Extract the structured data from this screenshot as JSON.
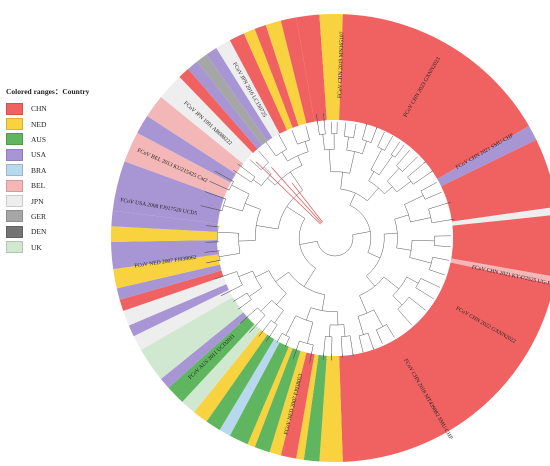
{
  "legend": {
    "title": "Colored ranges：Country",
    "items": [
      {
        "label": "CHN",
        "color": "#f06262"
      },
      {
        "label": "NED",
        "color": "#f8d23f"
      },
      {
        "label": "AUS",
        "color": "#5fb65f"
      },
      {
        "label": "USA",
        "color": "#a896d4"
      },
      {
        "label": "BRA",
        "color": "#b8d8ee"
      },
      {
        "label": "BEL",
        "color": "#f4b7b7"
      },
      {
        "label": "JPN",
        "color": "#eeeeee"
      },
      {
        "label": "GER",
        "color": "#a6a6a6"
      },
      {
        "label": "DEN",
        "color": "#747474"
      },
      {
        "label": "UK",
        "color": "#cfe8cf"
      }
    ]
  },
  "sectors": [
    {
      "a0": -100,
      "a1": -94,
      "country": "CHN"
    },
    {
      "a0": -94,
      "a1": -88,
      "country": "NED"
    },
    {
      "a0": -88,
      "a1": -30,
      "country": "CHN"
    },
    {
      "a0": -30,
      "a1": -26,
      "country": "USA"
    },
    {
      "a0": -26,
      "a1": -8,
      "country": "CHN"
    },
    {
      "a0": -8,
      "a1": -6,
      "country": "JPN"
    },
    {
      "a0": -6,
      "a1": 10,
      "country": "CHN"
    },
    {
      "a0": 10,
      "a1": 12,
      "country": "BEL"
    },
    {
      "a0": 12,
      "a1": 88,
      "country": "CHN"
    },
    {
      "a0": 88,
      "a1": 94,
      "country": "NED"
    },
    {
      "a0": 94,
      "a1": 98,
      "country": "AUS"
    },
    {
      "a0": 98,
      "a1": 100,
      "country": "NED"
    },
    {
      "a0": 100,
      "a1": 104,
      "country": "CHN"
    },
    {
      "a0": 104,
      "a1": 107,
      "country": "NED"
    },
    {
      "a0": 107,
      "a1": 111,
      "country": "AUS"
    },
    {
      "a0": 111,
      "a1": 113,
      "country": "NED"
    },
    {
      "a0": 113,
      "a1": 118,
      "country": "AUS"
    },
    {
      "a0": 118,
      "a1": 121,
      "country": "BRA"
    },
    {
      "a0": 121,
      "a1": 125,
      "country": "AUS"
    },
    {
      "a0": 125,
      "a1": 129,
      "country": "NED"
    },
    {
      "a0": 129,
      "a1": 133,
      "country": "UK"
    },
    {
      "a0": 133,
      "a1": 138,
      "country": "AUS"
    },
    {
      "a0": 138,
      "a1": 141,
      "country": "USA"
    },
    {
      "a0": 141,
      "a1": 150,
      "country": "UK"
    },
    {
      "a0": 150,
      "a1": 154,
      "country": "JPN"
    },
    {
      "a0": 154,
      "a1": 157,
      "country": "USA"
    },
    {
      "a0": 157,
      "a1": 161,
      "country": "JPN"
    },
    {
      "a0": 161,
      "a1": 164,
      "country": "CHN"
    },
    {
      "a0": 164,
      "a1": 167,
      "country": "USA"
    },
    {
      "a0": 167,
      "a1": 172,
      "country": "NED"
    },
    {
      "a0": 172,
      "a1": 179,
      "country": "USA"
    },
    {
      "a0": 179,
      "a1": 183,
      "country": "NED"
    },
    {
      "a0": 183,
      "a1": 187,
      "country": "USA"
    },
    {
      "a0": 187,
      "a1": 200,
      "country": "USA"
    },
    {
      "a0": 200,
      "a1": 208,
      "country": "BEL"
    },
    {
      "a0": 208,
      "a1": 213,
      "country": "USA"
    },
    {
      "a0": 213,
      "a1": 219,
      "country": "BEL"
    },
    {
      "a0": 219,
      "a1": 226,
      "country": "JPN"
    },
    {
      "a0": 226,
      "a1": 229,
      "country": "CHN"
    },
    {
      "a0": 229,
      "a1": 232,
      "country": "USA"
    },
    {
      "a0": 232,
      "a1": 235,
      "country": "GER"
    },
    {
      "a0": 235,
      "a1": 238,
      "country": "USA"
    },
    {
      "a0": 238,
      "a1": 242,
      "country": "JPN"
    },
    {
      "a0": 242,
      "a1": 246,
      "country": "CHN"
    },
    {
      "a0": 246,
      "a1": 249,
      "country": "NED"
    },
    {
      "a0": 249,
      "a1": 252,
      "country": "CHN"
    },
    {
      "a0": 252,
      "a1": 256,
      "country": "NED"
    },
    {
      "a0": 256,
      "a1": 260,
      "country": "CHN"
    }
  ],
  "tip_labels": [
    {
      "angle": 12,
      "text": "FCoV CHN 2021 KY472525 UG-FH8"
    },
    {
      "angle": 30,
      "text": "FCoV CHN 2022 GXNN2022"
    },
    {
      "angle": 60,
      "text": "FCoV CHN 2018 MT439882 SMU-CHP"
    },
    {
      "angle": 104,
      "text": "FCoV NED 2007 FJ938053"
    },
    {
      "angle": 136,
      "text": "FCoV AUS 2011 UCD2011"
    },
    {
      "angle": 172,
      "text": "FCoV NED 2007 FJ938062"
    },
    {
      "angle": 190,
      "text": "FCoV USA 2008 FJ917520 UCD5"
    },
    {
      "angle": 204,
      "text": "FCoV BEL 2013 KU215425 Cat2"
    },
    {
      "angle": 222,
      "text": "FCoV JPN 1991 AB088222"
    },
    {
      "angle": 240,
      "text": "FCoV JPN 2016 LC150725"
    },
    {
      "angle": 272,
      "text": "FCoV CHN 2019 MN165107"
    },
    {
      "angle": 300,
      "text": "FCoV CHN 2023 GXNN2023"
    },
    {
      "angle": 330,
      "text": "FCoV CHN 2021 SMU-CHP"
    }
  ]
}
